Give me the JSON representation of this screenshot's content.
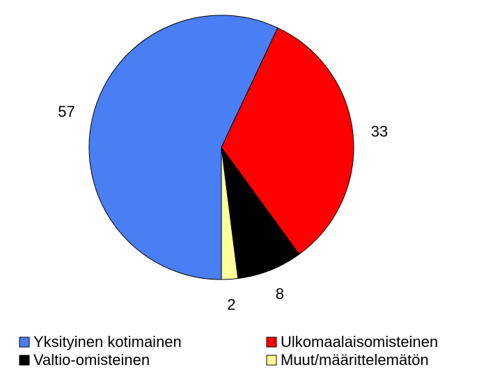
{
  "chart_data": {
    "type": "pie",
    "categories": [
      "Yksityinen kotimainen",
      "Ulkomaalaisomisteinen",
      "Valtio-omisteinen",
      "Muut/määrittelemätön"
    ],
    "values": [
      57,
      33,
      8,
      2
    ],
    "colors": [
      "#4a7ef4",
      "#ff0000",
      "#000000",
      "#ffff99"
    ],
    "legend": "bottom"
  }
}
